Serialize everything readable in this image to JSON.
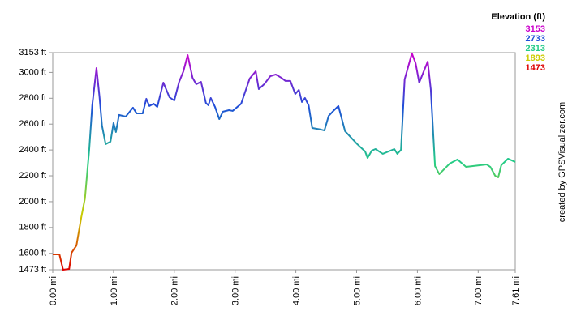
{
  "chart_data": {
    "type": "line",
    "legend_title": "Elevation (ft)",
    "credit": "created by GPSVisualizer.com",
    "color_scale": [
      {
        "value": 3153,
        "color": "#cc00cc"
      },
      {
        "value": 2733,
        "color": "#1e4fd8"
      },
      {
        "value": 2313,
        "color": "#22cc88"
      },
      {
        "value": 1893,
        "color": "#cccc00"
      },
      {
        "value": 1473,
        "color": "#dd0000"
      }
    ],
    "x": [
      0,
      0.11,
      0.17,
      0.27,
      0.31,
      0.39,
      0.47,
      0.53,
      0.6,
      0.65,
      0.72,
      0.77,
      0.81,
      0.87,
      0.95,
      1.0,
      1.04,
      1.09,
      1.2,
      1.32,
      1.38,
      1.48,
      1.54,
      1.59,
      1.66,
      1.72,
      1.82,
      1.92,
      2.0,
      2.08,
      2.15,
      2.22,
      2.3,
      2.36,
      2.44,
      2.52,
      2.56,
      2.6,
      2.67,
      2.74,
      2.8,
      2.9,
      2.96,
      3.1,
      3.24,
      3.34,
      3.39,
      3.48,
      3.58,
      3.67,
      3.76,
      3.83,
      3.91,
      3.99,
      4.05,
      4.1,
      4.15,
      4.21,
      4.27,
      4.41,
      4.47,
      4.54,
      4.63,
      4.7,
      4.81,
      5.01,
      5.14,
      5.18,
      5.25,
      5.31,
      5.43,
      5.62,
      5.67,
      5.73,
      5.79,
      5.91,
      5.97,
      6.03,
      6.17,
      6.22,
      6.29,
      6.36,
      6.53,
      6.66,
      6.8,
      7.14,
      7.2,
      7.28,
      7.33,
      7.38,
      7.49,
      7.61
    ],
    "values": [
      1592,
      1592,
      1473,
      1479,
      1605,
      1661,
      1880,
      2025,
      2401,
      2746,
      3034,
      2808,
      2589,
      2445,
      2464,
      2608,
      2539,
      2671,
      2658,
      2727,
      2683,
      2683,
      2796,
      2740,
      2758,
      2733,
      2921,
      2808,
      2783,
      2927,
      3009,
      3134,
      2959,
      2909,
      2927,
      2764,
      2746,
      2802,
      2733,
      2639,
      2696,
      2708,
      2702,
      2758,
      2952,
      3009,
      2871,
      2909,
      2971,
      2984,
      2959,
      2934,
      2934,
      2833,
      2865,
      2771,
      2802,
      2746,
      2570,
      2558,
      2551,
      2664,
      2708,
      2740,
      2545,
      2445,
      2388,
      2338,
      2395,
      2407,
      2370,
      2407,
      2370,
      2401,
      2946,
      3147,
      3072,
      2921,
      3084,
      2871,
      2275,
      2213,
      2294,
      2326,
      2269,
      2288,
      2269,
      2200,
      2188,
      2282,
      2332,
      2307
    ],
    "xlim": [
      0,
      7.61
    ],
    "ylim": [
      1473,
      3153
    ],
    "xticks": [
      {
        "value": 0,
        "label": "0.00 mi"
      },
      {
        "value": 1,
        "label": "1.00 mi"
      },
      {
        "value": 2,
        "label": "2.00 mi"
      },
      {
        "value": 3,
        "label": "3.00 mi"
      },
      {
        "value": 4,
        "label": "4.00 mi"
      },
      {
        "value": 5,
        "label": "5.00 mi"
      },
      {
        "value": 6,
        "label": "6.00 mi"
      },
      {
        "value": 7,
        "label": "7.00 mi"
      },
      {
        "value": 7.61,
        "label": "7.61 mi"
      }
    ],
    "yticks": [
      {
        "value": 1473,
        "label": "1473 ft"
      },
      {
        "value": 1600,
        "label": "1600 ft"
      },
      {
        "value": 1800,
        "label": "1800 ft"
      },
      {
        "value": 2000,
        "label": "2000 ft"
      },
      {
        "value": 2200,
        "label": "2200 ft"
      },
      {
        "value": 2400,
        "label": "2400 ft"
      },
      {
        "value": 2600,
        "label": "2600 ft"
      },
      {
        "value": 2800,
        "label": "2800 ft"
      },
      {
        "value": 3000,
        "label": "3000 ft"
      },
      {
        "value": 3153,
        "label": "3153 ft"
      }
    ]
  }
}
